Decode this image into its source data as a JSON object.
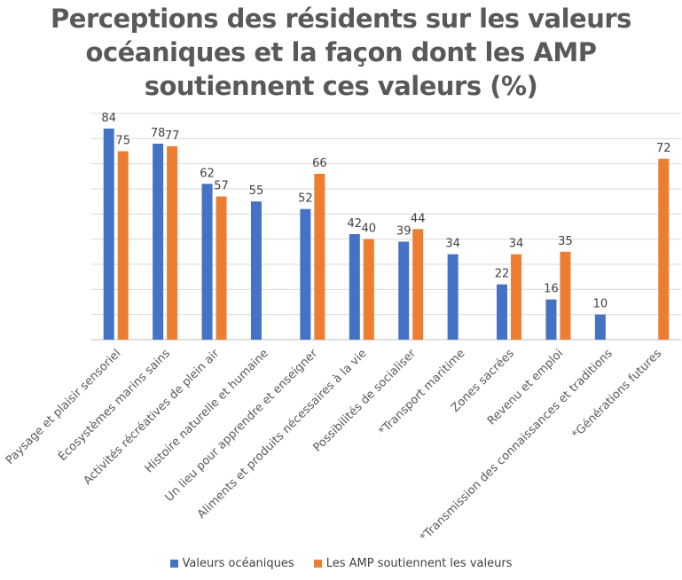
{
  "chart_data": {
    "type": "bar",
    "title": "Perceptions des résidents sur les valeurs océaniques et la façon dont les AMP soutiennent ces valeurs (%)",
    "title_lines": [
      "Perceptions des résidents sur les valeurs",
      "océaniques et la façon dont les AMP",
      "soutiennent ces valeurs (%)"
    ],
    "xlabel": "",
    "ylabel": "",
    "ylim": [
      0,
      90
    ],
    "grid": true,
    "legend_position": "bottom",
    "categories": [
      "Paysage et plaisir sensoriel",
      "Écosystèmes marins sains",
      "Activités récréatives de plein air",
      "Histoire naturelle et humaine",
      "Un lieu pour apprendre et enseigner",
      "Aliments et produits nécessaires à la vie",
      "Possibilités de socialiser",
      "*Transport maritime",
      "Zones sacrées",
      "Revenu et emploi",
      "*Transmission des connaissances et traditions",
      "*Générations futures"
    ],
    "series": [
      {
        "name": "Valeurs océaniques",
        "color": "#4472C4",
        "values": [
          84,
          78,
          62,
          55,
          52,
          42,
          39,
          34,
          22,
          16,
          10,
          null
        ]
      },
      {
        "name": "Les AMP soutiennent les valeurs",
        "color": "#ED7D31",
        "values": [
          75,
          77,
          57,
          null,
          66,
          40,
          44,
          null,
          34,
          35,
          null,
          72
        ]
      }
    ]
  }
}
